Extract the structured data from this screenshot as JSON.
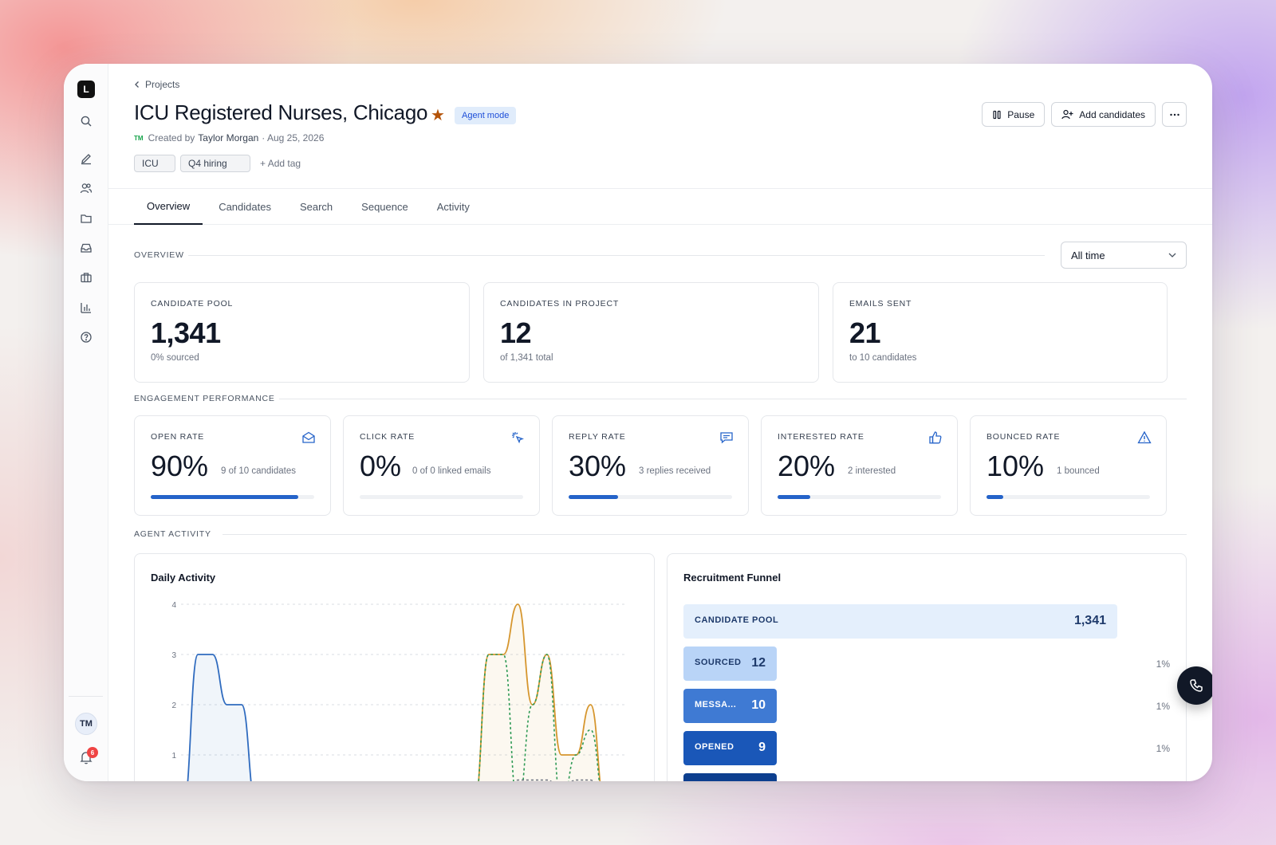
{
  "app": {
    "logo_letter": "L"
  },
  "sidebar": {
    "icons": [
      "search-icon",
      "pencil-icon",
      "users-icon",
      "folder-icon",
      "inbox-icon",
      "briefcase-icon",
      "bar-chart-icon",
      "help-icon"
    ],
    "user_initials": "TM",
    "notification_count": "6"
  },
  "header": {
    "breadcrumb": "Projects",
    "title": "ICU Registered Nurses, Chicago",
    "badge": "Agent mode",
    "creator_initials": "TM",
    "created_by_prefix": "Created by",
    "author": "Taylor Morgan",
    "date": "· Aug 25, 2026",
    "tags": [
      "ICU",
      "Q4 hiring"
    ],
    "add_tag": "Add tag",
    "pause_label": "Pause",
    "add_candidates_label": "Add candidates"
  },
  "tabs": [
    "Overview",
    "Candidates",
    "Search",
    "Sequence",
    "Activity"
  ],
  "overview": {
    "label": "OVERVIEW",
    "range": "All time",
    "stats": [
      {
        "label": "CANDIDATE POOL",
        "value": "1,341",
        "sub": "0% sourced"
      },
      {
        "label": "CANDIDATES IN PROJECT",
        "value": "12",
        "sub": "of 1,341 total"
      },
      {
        "label": "EMAILS SENT",
        "value": "21",
        "sub": "to 10 candidates"
      }
    ]
  },
  "engagement": {
    "label": "ENGAGEMENT PERFORMANCE",
    "cards": [
      {
        "label": "OPEN RATE",
        "value": "90%",
        "sub": "9 of 10 candidates",
        "pct": 90,
        "icon": "mail-open-icon"
      },
      {
        "label": "CLICK RATE",
        "value": "0%",
        "sub": "0 of 0 linked emails",
        "pct": 0,
        "icon": "click-icon"
      },
      {
        "label": "REPLY RATE",
        "value": "30%",
        "sub": "3 replies received",
        "pct": 30,
        "icon": "reply-icon"
      },
      {
        "label": "INTERESTED RATE",
        "value": "20%",
        "sub": "2 interested",
        "pct": 20,
        "icon": "thumbs-up-icon"
      },
      {
        "label": "BOUNCED RATE",
        "value": "10%",
        "sub": "1 bounced",
        "pct": 10,
        "icon": "warning-icon"
      }
    ]
  },
  "agent_activity": {
    "label": "AGENT ACTIVITY",
    "daily_title": "Daily Activity",
    "funnel_title": "Recruitment Funnel"
  },
  "chart_data": {
    "type": "area",
    "title": "Daily Activity",
    "ylim": [
      0,
      4
    ],
    "yticks": [
      "4",
      "3",
      "2",
      "1"
    ],
    "grid": true,
    "series": [
      {
        "color": "#2f6bbf",
        "style": "solid",
        "values": [
          0,
          3,
          3,
          2,
          2,
          0,
          0,
          0,
          0,
          0,
          0,
          0,
          0,
          0,
          0,
          0,
          0,
          0,
          0,
          0,
          0,
          0,
          0,
          0,
          0,
          0,
          0,
          0,
          0,
          0,
          0
        ]
      },
      {
        "color": "#d6962e",
        "style": "solid",
        "values": [
          0,
          0,
          0,
          0,
          0,
          0,
          0,
          0,
          0,
          0,
          0,
          0,
          0,
          0,
          0,
          0,
          0,
          0,
          0,
          0,
          0,
          3,
          3,
          4,
          2,
          3,
          1,
          1,
          2,
          0,
          0
        ]
      },
      {
        "color": "#2e9a55",
        "style": "dashed",
        "values": [
          0,
          0,
          0,
          0,
          0,
          0,
          0,
          0,
          0,
          0,
          0,
          0,
          0,
          0,
          0,
          0,
          0,
          0,
          0,
          0,
          0,
          3,
          3,
          0,
          2,
          3,
          0,
          1,
          1.5,
          0,
          0
        ]
      },
      {
        "color": "#6b7280",
        "style": "dashed",
        "values": [
          0,
          0,
          0,
          0,
          0,
          0,
          0,
          0,
          0,
          0,
          0,
          0,
          0,
          0,
          0,
          0,
          0,
          0,
          0,
          0,
          0,
          0,
          0,
          0.5,
          0.5,
          0.5,
          0.3,
          0.5,
          0.5,
          0,
          0
        ]
      }
    ]
  },
  "funnel": [
    {
      "label": "CANDIDATE POOL",
      "count": "1,341",
      "pct": "",
      "fraction": 1.0,
      "bg": "#e4effc",
      "fg": "#1e3a6b"
    },
    {
      "label": "SOURCED",
      "count": "12",
      "pct": "1%",
      "fraction": 0.009,
      "bg": "#b9d4f7",
      "fg": "#1e3a6b"
    },
    {
      "label": "MESSA...",
      "count": "10",
      "pct": "1%",
      "fraction": 0.007,
      "bg": "#3f7ad3",
      "fg": "#ffffff"
    },
    {
      "label": "OPENED",
      "count": "9",
      "pct": "1%",
      "fraction": 0.007,
      "bg": "#1a57b8",
      "fg": "#ffffff"
    }
  ]
}
